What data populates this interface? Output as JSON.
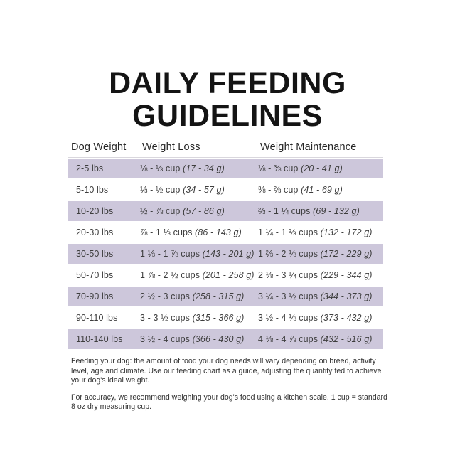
{
  "title": {
    "line1": "DAILY FEEDING",
    "line2": "GUIDELINES"
  },
  "table": {
    "columns": [
      "Dog Weight",
      "Weight Loss",
      "Weight Maintenance"
    ],
    "rows": [
      {
        "weight": "2-5 lbs",
        "loss": "⅛ - ⅓ cup",
        "loss_g": "(17 - 34 g)",
        "maint": "⅛ - ⅜ cup",
        "maint_g": "(20 - 41 g)"
      },
      {
        "weight": "5-10 lbs",
        "loss": "⅓ - ½ cup",
        "loss_g": "(34 - 57 g)",
        "maint": "⅜ - ⅔ cup",
        "maint_g": "(41 - 69 g)"
      },
      {
        "weight": "10-20 lbs",
        "loss": "½ - ⅞ cup",
        "loss_g": "(57 - 86 g)",
        "maint": "⅔ - 1 ¼ cups",
        "maint_g": "(69 - 132 g)"
      },
      {
        "weight": "20-30 lbs",
        "loss": "⅞ - 1 ⅓ cups",
        "loss_g": "(86 - 143 g)",
        "maint": "1 ¼ - 1 ⅔ cups",
        "maint_g": "(132 - 172 g)"
      },
      {
        "weight": "30-50 lbs",
        "loss": "1 ⅓ - 1 ⅞ cups",
        "loss_g": "(143 - 201 g)",
        "maint": "1 ⅔ - 2 ⅛ cups",
        "maint_g": "(172 - 229 g)"
      },
      {
        "weight": "50-70 lbs",
        "loss": "1 ⅞ - 2 ½ cups",
        "loss_g": "(201 - 258 g)",
        "maint": "2 ⅛ - 3 ¼ cups",
        "maint_g": "(229 - 344 g)"
      },
      {
        "weight": "70-90 lbs",
        "loss": "2 ½ - 3 cups",
        "loss_g": "(258 - 315 g)",
        "maint": "3 ¼ - 3 ½ cups",
        "maint_g": "(344 - 373 g)"
      },
      {
        "weight": "90-110 lbs",
        "loss": "3 - 3 ½ cups",
        "loss_g": "(315 - 366 g)",
        "maint": "3 ½ - 4 ⅛ cups",
        "maint_g": "(373 - 432 g)"
      },
      {
        "weight": "110-140 lbs",
        "loss": "3 ½ - 4 cups",
        "loss_g": "(366 - 430 g)",
        "maint": "4 ⅛ - 4 ⅞ cups",
        "maint_g": "(432 - 516 g)"
      }
    ]
  },
  "footnotes": [
    "Feeding your dog: the amount of food your dog needs will vary depending on breed, activity level, age and climate. Use our feeding chart as a guide, adjusting the quantity fed to achieve your dog's ideal weight.",
    "For accuracy, we recommend weighing your dog's food using a kitchen scale. 1 cup = standard 8 oz dry measuring cup."
  ],
  "colors": {
    "row_stripe": "#cdc7db",
    "title_text": "#141414",
    "body_text": "#3d3d3d",
    "background": "#ffffff"
  }
}
